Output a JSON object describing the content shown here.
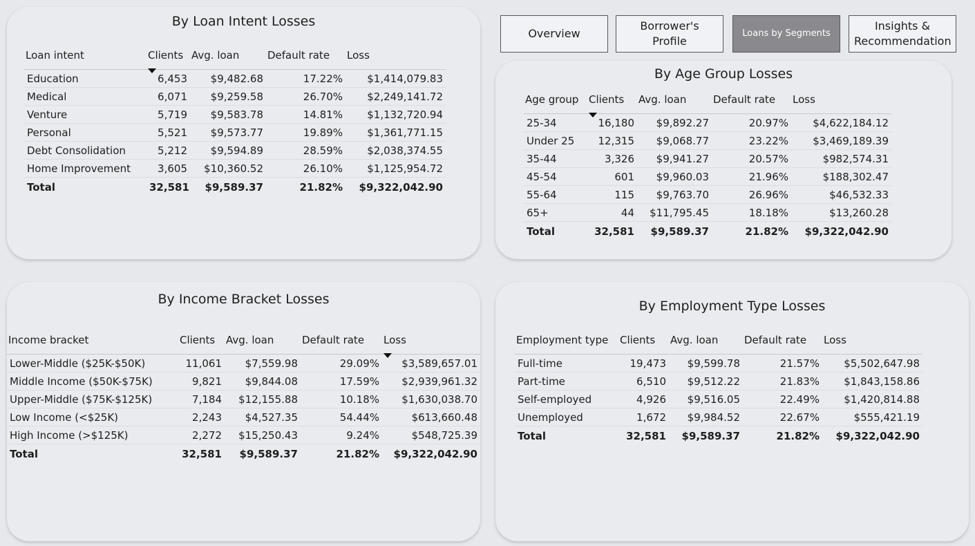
{
  "nav": [
    {
      "label": "Overview",
      "active": false
    },
    {
      "label": "Borrower's Profile",
      "active": false
    },
    {
      "label": "Loans by Segments",
      "active": true
    },
    {
      "label": "Insights & Recommendation",
      "active": false
    }
  ],
  "tables": [
    {
      "title": "By Loan Intent Losses",
      "columns": [
        "Loan intent",
        "Clients",
        "Avg. loan",
        "Default rate",
        "Loss"
      ],
      "sorted_column": 1,
      "rows": [
        [
          "Education",
          "6,453",
          "$9,482.68",
          "17.22%",
          "$1,414,079.83"
        ],
        [
          "Medical",
          "6,071",
          "$9,259.58",
          "26.70%",
          "$2,249,141.72"
        ],
        [
          "Venture",
          "5,719",
          "$9,583.78",
          "14.81%",
          "$1,132,720.94"
        ],
        [
          "Personal",
          "5,521",
          "$9,573.77",
          "19.89%",
          "$1,361,771.15"
        ],
        [
          "Debt Consolidation",
          "5,212",
          "$9,594.89",
          "28.59%",
          "$2,038,374.55"
        ],
        [
          "Home Improvement",
          "3,605",
          "$10,360.52",
          "26.10%",
          "$1,125,954.72"
        ]
      ],
      "total": [
        "Total",
        "32,581",
        "$9,589.37",
        "21.82%",
        "$9,322,042.90"
      ]
    },
    {
      "title": "By Age Group Losses",
      "columns": [
        "Age group",
        "Clients",
        "Avg. loan",
        "Default rate",
        "Loss"
      ],
      "sorted_column": 1,
      "rows": [
        [
          "25-34",
          "16,180",
          "$9,892.27",
          "20.97%",
          "$4,622,184.12"
        ],
        [
          "Under 25",
          "12,315",
          "$9,068.77",
          "23.22%",
          "$3,469,189.39"
        ],
        [
          "35-44",
          "3,326",
          "$9,941.27",
          "20.57%",
          "$982,574.31"
        ],
        [
          "45-54",
          "601",
          "$9,960.03",
          "21.96%",
          "$188,302.47"
        ],
        [
          "55-64",
          "115",
          "$9,763.70",
          "26.96%",
          "$46,532.33"
        ],
        [
          "65+",
          "44",
          "$11,795.45",
          "18.18%",
          "$13,260.28"
        ]
      ],
      "total": [
        "Total",
        "32,581",
        "$9,589.37",
        "21.82%",
        "$9,322,042.90"
      ]
    },
    {
      "title": "By Income Bracket Losses",
      "columns": [
        "Income bracket",
        "Clients",
        "Avg. loan",
        "Default rate",
        "Loss"
      ],
      "sorted_column": 4,
      "rows": [
        [
          "Lower-Middle ($25K-$50K)",
          "11,061",
          "$7,559.98",
          "29.09%",
          "$3,589,657.01"
        ],
        [
          "Middle Income ($50K-$75K)",
          "9,821",
          "$9,844.08",
          "17.59%",
          "$2,939,961.32"
        ],
        [
          "Upper-Middle ($75K-$125K)",
          "7,184",
          "$12,155.88",
          "10.18%",
          "$1,630,038.70"
        ],
        [
          "Low Income (<$25K)",
          "2,243",
          "$4,527.35",
          "54.44%",
          "$613,660.48"
        ],
        [
          "High Income (>$125K)",
          "2,272",
          "$15,250.43",
          "9.24%",
          "$548,725.39"
        ]
      ],
      "total": [
        "Total",
        "32,581",
        "$9,589.37",
        "21.82%",
        "$9,322,042.90"
      ]
    },
    {
      "title": "By Employment Type Losses",
      "columns": [
        "Employment type",
        "Clients",
        "Avg. loan",
        "Default rate",
        "Loss"
      ],
      "rows": [
        [
          "Full-time",
          "19,473",
          "$9,599.78",
          "21.57%",
          "$5,502,647.98"
        ],
        [
          "Part-time",
          "6,510",
          "$9,512.22",
          "21.83%",
          "$1,843,158.86"
        ],
        [
          "Self-employed",
          "4,926",
          "$9,516.05",
          "22.49%",
          "$1,420,814.88"
        ],
        [
          "Unemployed",
          "1,672",
          "$9,984.52",
          "22.67%",
          "$555,421.19"
        ]
      ],
      "total": [
        "Total",
        "32,581",
        "$9,589.37",
        "21.82%",
        "$9,322,042.90"
      ]
    }
  ]
}
